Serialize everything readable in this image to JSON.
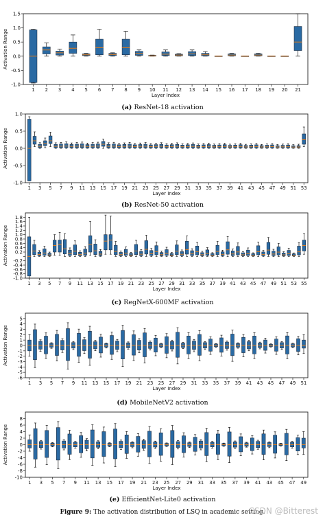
{
  "figure": {
    "label": "Figure 9:",
    "caption": "The activation distribution of LSQ in academic setting."
  },
  "watermark": "CSDN @Bitterest",
  "colors": {
    "box": "#2a6aa3",
    "edge": "#1f2f44",
    "median": "#e07b1a"
  },
  "chart_data": [
    {
      "type": "box",
      "id": "a",
      "subcaption_label": "(a)",
      "subcaption_text": "ResNet-18 activation",
      "xlabel": "Layer Index",
      "ylabel": "Activation Range",
      "ylim": [
        -1.0,
        1.5
      ],
      "yticks": [
        -1.0,
        -0.5,
        0.0,
        0.5,
        1.0,
        1.5
      ],
      "xtick_step": 1,
      "boxes": [
        {
          "x": 1,
          "q1": -0.93,
          "med": 0.0,
          "q3": 0.93,
          "wlo": -0.95,
          "whi": 0.95
        },
        {
          "x": 2,
          "q1": 0.08,
          "med": 0.22,
          "q3": 0.33,
          "wlo": 0.0,
          "whi": 0.47
        },
        {
          "x": 3,
          "q1": 0.04,
          "med": 0.12,
          "q3": 0.18,
          "wlo": 0.0,
          "whi": 0.25
        },
        {
          "x": 4,
          "q1": 0.1,
          "med": 0.28,
          "q3": 0.5,
          "wlo": 0.0,
          "whi": 0.75
        },
        {
          "x": 5,
          "q1": 0.02,
          "med": 0.05,
          "q3": 0.08,
          "wlo": 0.0,
          "whi": 0.1
        },
        {
          "x": 6,
          "q1": 0.05,
          "med": 0.3,
          "q3": 0.6,
          "wlo": 0.0,
          "whi": 0.95
        },
        {
          "x": 7,
          "q1": 0.02,
          "med": 0.06,
          "q3": 0.1,
          "wlo": 0.0,
          "whi": 0.12
        },
        {
          "x": 8,
          "q1": 0.05,
          "med": 0.3,
          "q3": 0.6,
          "wlo": 0.0,
          "whi": 0.88
        },
        {
          "x": 9,
          "q1": 0.03,
          "med": 0.1,
          "q3": 0.17,
          "wlo": 0.0,
          "whi": 0.22
        },
        {
          "x": 10,
          "q1": 0.0,
          "med": 0.01,
          "q3": 0.03,
          "wlo": 0.0,
          "whi": 0.04
        },
        {
          "x": 11,
          "q1": 0.02,
          "med": 0.07,
          "q3": 0.15,
          "wlo": 0.0,
          "whi": 0.22
        },
        {
          "x": 12,
          "q1": 0.01,
          "med": 0.04,
          "q3": 0.07,
          "wlo": 0.0,
          "whi": 0.09
        },
        {
          "x": 13,
          "q1": 0.02,
          "med": 0.08,
          "q3": 0.16,
          "wlo": 0.0,
          "whi": 0.22
        },
        {
          "x": 14,
          "q1": 0.01,
          "med": 0.05,
          "q3": 0.1,
          "wlo": 0.0,
          "whi": 0.16
        },
        {
          "x": 15,
          "q1": 0.0,
          "med": 0.0,
          "q3": 0.01,
          "wlo": 0.0,
          "whi": 0.01
        },
        {
          "x": 16,
          "q1": 0.01,
          "med": 0.04,
          "q3": 0.08,
          "wlo": 0.0,
          "whi": 0.1
        },
        {
          "x": 17,
          "q1": 0.0,
          "med": 0.0,
          "q3": 0.01,
          "wlo": 0.0,
          "whi": 0.01
        },
        {
          "x": 18,
          "q1": 0.01,
          "med": 0.04,
          "q3": 0.08,
          "wlo": 0.0,
          "whi": 0.1
        },
        {
          "x": 19,
          "q1": 0.0,
          "med": 0.0,
          "q3": 0.01,
          "wlo": 0.0,
          "whi": 0.01
        },
        {
          "x": 20,
          "q1": 0.0,
          "med": 0.0,
          "q3": 0.01,
          "wlo": 0.0,
          "whi": 0.01
        },
        {
          "x": 21,
          "q1": 0.2,
          "med": 0.5,
          "q3": 1.05,
          "wlo": 0.0,
          "whi": 1.5
        }
      ]
    },
    {
      "type": "box",
      "id": "b",
      "subcaption_label": "(b)",
      "subcaption_text": "ResNet-50 activation",
      "xlabel": "Layer Index",
      "ylabel": "Activation Range",
      "ylim": [
        -1.0,
        1.0
      ],
      "yticks": [
        -1.0,
        -0.5,
        0.0,
        0.5,
        1.0
      ],
      "xtick_step": 2,
      "generated": {
        "count": 53,
        "first": {
          "q1": -0.95,
          "med": 0.0,
          "q3": 0.85,
          "wlo": -0.95,
          "whi": 0.92
        },
        "last": {
          "q1": 0.12,
          "med": 0.25,
          "q3": 0.42,
          "wlo": 0.05,
          "whi": 0.62
        },
        "special": {
          "2": {
            "q1": 0.12,
            "med": 0.22,
            "q3": 0.35,
            "wlo": 0.05,
            "whi": 0.48
          },
          "4": {
            "q1": 0.08,
            "med": 0.14,
            "q3": 0.22,
            "wlo": 0.02,
            "whi": 0.3
          },
          "5": {
            "q1": 0.14,
            "med": 0.22,
            "q3": 0.36,
            "wlo": 0.05,
            "whi": 0.47
          },
          "15": {
            "q1": 0.06,
            "med": 0.12,
            "q3": 0.2,
            "wlo": 0.0,
            "whi": 0.27
          },
          "52": {
            "q1": 0.02,
            "med": 0.04,
            "q3": 0.08,
            "wlo": 0.0,
            "whi": 0.12
          }
        },
        "base_q3": 0.12,
        "decay": 0.0018
      }
    },
    {
      "type": "box",
      "id": "c",
      "subcaption_label": "(c)",
      "subcaption_text": "RegNetX-600MF activation",
      "xlabel": "Layer Index",
      "ylabel": "Activation Range",
      "ylim": [
        -1.0,
        2.0
      ],
      "yticks": [
        -1.0,
        -0.8,
        -0.6,
        -0.4,
        -0.2,
        0.0,
        0.2,
        0.4,
        0.6,
        0.8,
        1.0,
        1.2,
        1.4,
        1.6,
        1.8
      ],
      "ytick_labels_shown": [
        -1.0,
        -0.8,
        -0.6,
        -0.4,
        -0.2,
        0.2,
        0.4,
        0.6,
        0.8,
        1.0,
        1.2,
        1.4,
        1.6,
        1.8
      ],
      "xtick_step": 2,
      "generated": {
        "count": 55,
        "first": {
          "q1": -0.9,
          "med": 0.0,
          "q3": 0.9,
          "wlo": -1.0,
          "whi": 1.8
        },
        "last": {
          "q1": 0.25,
          "med": 0.5,
          "q3": 0.75,
          "wlo": 0.1,
          "whi": 1.05
        },
        "special": {
          "16": {
            "q1": 0.3,
            "med": 0.7,
            "q3": 1.0,
            "wlo": 0.1,
            "whi": 1.9
          },
          "17": {
            "q1": 0.3,
            "med": 0.75,
            "q3": 1.0,
            "wlo": 0.1,
            "whi": 1.85
          },
          "13": {
            "q1": 0.2,
            "med": 0.55,
            "q3": 0.95,
            "wlo": 0.05,
            "whi": 1.6
          },
          "6": {
            "q1": 0.2,
            "med": 0.5,
            "q3": 0.75,
            "wlo": 0.05,
            "whi": 1.0
          },
          "7": {
            "q1": 0.2,
            "med": 0.55,
            "q3": 0.75,
            "wlo": 0.05,
            "whi": 1.1
          }
        },
        "base_q3": 0.32,
        "pattern": [
          0.8,
          0.3,
          0.55,
          0.2,
          0.35,
          0.15,
          0.6,
          0.25
        ],
        "decay": 0.004
      }
    },
    {
      "type": "box",
      "id": "d",
      "subcaption_label": "(d)",
      "subcaption_text": "MobileNetV2 activation",
      "xlabel": "Layer Index",
      "ylabel": "Activation Range",
      "ylim": [
        -6,
        6
      ],
      "yticks": [
        -6,
        -5,
        -4,
        -3,
        -2,
        -1,
        0,
        1,
        2,
        3,
        4,
        5
      ],
      "xtick_step": 2,
      "generated": {
        "count": 51,
        "first": {
          "q1": -1.0,
          "med": 0.0,
          "q3": 1.0,
          "wlo": -2.0,
          "whi": 2.0
        },
        "last": {
          "q1": -0.5,
          "med": 0.0,
          "q3": 1.0,
          "wlo": -1.5,
          "whi": 2.0
        },
        "symmetric": true,
        "pattern": [
          2.5,
          1.2,
          3.0,
          0.8,
          1.8,
          0.4,
          2.2,
          1.0,
          3.4,
          0.6
        ],
        "decay": 0.01
      }
    },
    {
      "type": "box",
      "id": "e",
      "subcaption_label": "(e)",
      "subcaption_text": "EfficientNet-Lite0 activation",
      "xlabel": "Layer Index",
      "ylabel": "Activation Range",
      "ylim": [
        -10,
        10
      ],
      "yticks": [
        -10,
        -8,
        -6,
        -4,
        -2,
        0,
        2,
        4,
        6,
        8
      ],
      "xtick_step": 2,
      "generated": {
        "count": 49,
        "first": {
          "q1": -1.0,
          "med": 0.0,
          "q3": 1.5,
          "wlo": -2.0,
          "whi": 3.0
        },
        "last": {
          "q1": -1.0,
          "med": 0.0,
          "q3": 2.0,
          "wlo": -3.0,
          "whi": 4.0
        },
        "symmetric": true,
        "pattern": [
          3.0,
          1.5,
          5.0,
          1.0,
          4.5,
          0.5,
          5.5,
          1.2,
          3.5,
          0.8
        ],
        "decay": 0.008
      }
    }
  ]
}
